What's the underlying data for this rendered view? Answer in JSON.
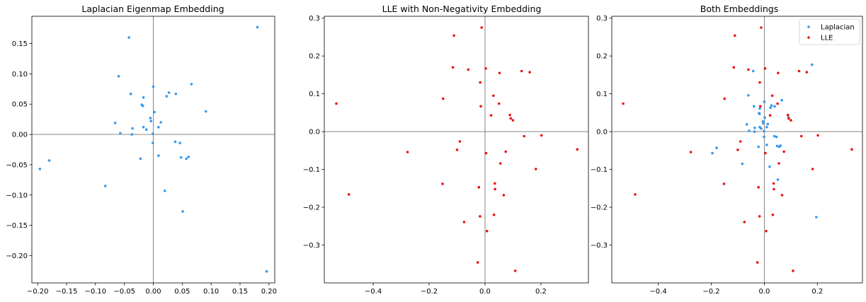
{
  "chart_data": [
    {
      "type": "scatter",
      "title": "Laplacian Eigenmap Embedding",
      "xlim": [
        -0.21,
        0.21
      ],
      "ylim": [
        -0.245,
        0.195
      ],
      "xticks": [
        -0.2,
        -0.15,
        -0.1,
        -0.05,
        0.0,
        0.05,
        0.1,
        0.15,
        0.2
      ],
      "xtick_labels": [
        "−0.20",
        "−0.15",
        "−0.10",
        "−0.05",
        "0.00",
        "0.05",
        "0.10",
        "0.15",
        "0.20"
      ],
      "yticks": [
        0.15,
        0.1,
        0.05,
        0.0,
        -0.05,
        -0.1,
        -0.15,
        -0.2
      ],
      "ytick_labels": [
        "0.15",
        "0.10",
        "0.05",
        "0.00",
        "−0.05",
        "−0.10",
        "−0.15",
        "−0.20"
      ],
      "zero_lines": true,
      "legend": null,
      "series": [
        {
          "color": "#3399ee",
          "points": [
            [
              -0.196,
              -0.057
            ],
            [
              -0.18,
              -0.043
            ],
            [
              -0.083,
              -0.085
            ],
            [
              -0.066,
              0.019
            ],
            [
              -0.06,
              0.096
            ],
            [
              -0.057,
              0.002
            ],
            [
              -0.042,
              0.16
            ],
            [
              -0.039,
              0.067
            ],
            [
              -0.036,
              0.01
            ],
            [
              -0.037,
              0.0
            ],
            [
              -0.022,
              -0.04
            ],
            [
              -0.02,
              0.049
            ],
            [
              -0.018,
              0.047
            ],
            [
              -0.017,
              0.061
            ],
            [
              -0.017,
              0.012
            ],
            [
              -0.012,
              0.008
            ],
            [
              -0.005,
              0.027
            ],
            [
              -0.004,
              0.022
            ],
            [
              0.0,
              0.079
            ],
            [
              -0.001,
              0.001
            ],
            [
              0.002,
              0.037
            ],
            [
              -0.001,
              -0.014
            ],
            [
              0.009,
              0.012
            ],
            [
              0.009,
              -0.035
            ],
            [
              0.013,
              0.02
            ],
            [
              0.02,
              -0.093
            ],
            [
              0.023,
              0.063
            ],
            [
              0.027,
              0.069
            ],
            [
              0.039,
              0.067
            ],
            [
              0.038,
              -0.012
            ],
            [
              0.046,
              -0.014
            ],
            [
              0.048,
              -0.038
            ],
            [
              0.051,
              -0.127
            ],
            [
              0.057,
              -0.04
            ],
            [
              0.061,
              -0.037
            ],
            [
              0.066,
              0.083
            ],
            [
              0.091,
              0.038
            ],
            [
              0.18,
              0.177
            ],
            [
              0.196,
              -0.226
            ]
          ]
        }
      ]
    },
    {
      "type": "scatter",
      "title": "LLE with Non-Negativity Embedding",
      "xlim": [
        -0.575,
        0.37
      ],
      "ylim": [
        -0.4,
        0.305
      ],
      "xticks": [
        -0.4,
        -0.2,
        0.0,
        0.2
      ],
      "xtick_labels": [
        "−0.4",
        "−0.2",
        "0.0",
        "0.2"
      ],
      "yticks": [
        0.3,
        0.2,
        0.1,
        0.0,
        -0.1,
        -0.2,
        -0.3
      ],
      "ytick_labels": [
        "0.3",
        "0.2",
        "0.1",
        "0.0",
        "−0.1",
        "−0.2",
        "−0.3"
      ],
      "zero_lines": true,
      "legend": null,
      "series": [
        {
          "color": "#ee1111",
          "points": [
            [
              -0.532,
              0.074
            ],
            [
              -0.487,
              -0.166
            ],
            [
              -0.277,
              -0.054
            ],
            [
              -0.15,
              0.087
            ],
            [
              -0.152,
              -0.138
            ],
            [
              -0.115,
              0.17
            ],
            [
              -0.111,
              0.254
            ],
            [
              -0.1,
              -0.048
            ],
            [
              -0.09,
              -0.026
            ],
            [
              -0.075,
              -0.239
            ],
            [
              -0.06,
              0.164
            ],
            [
              -0.026,
              -0.346
            ],
            [
              -0.022,
              -0.147
            ],
            [
              -0.018,
              -0.224
            ],
            [
              -0.017,
              0.13
            ],
            [
              -0.015,
              0.067
            ],
            [
              -0.012,
              0.275
            ],
            [
              0.003,
              0.167
            ],
            [
              0.004,
              -0.057
            ],
            [
              0.007,
              -0.263
            ],
            [
              0.022,
              0.043
            ],
            [
              0.03,
              0.095
            ],
            [
              0.032,
              -0.22
            ],
            [
              0.035,
              -0.137
            ],
            [
              0.036,
              -0.152
            ],
            [
              0.05,
              0.074
            ],
            [
              0.052,
              0.155
            ],
            [
              0.055,
              -0.084
            ],
            [
              0.067,
              -0.168
            ],
            [
              0.074,
              -0.053
            ],
            [
              0.089,
              0.044
            ],
            [
              0.092,
              0.035
            ],
            [
              0.1,
              0.03
            ],
            [
              0.108,
              -0.368
            ],
            [
              0.131,
              0.16
            ],
            [
              0.14,
              -0.012
            ],
            [
              0.16,
              0.157
            ],
            [
              0.182,
              -0.099
            ],
            [
              0.202,
              -0.01
            ],
            [
              0.33,
              -0.047
            ]
          ]
        }
      ]
    },
    {
      "type": "scatter",
      "title": "Both Embeddings",
      "xlim": [
        -0.575,
        0.37
      ],
      "ylim": [
        -0.4,
        0.305
      ],
      "xticks": [
        -0.4,
        -0.2,
        0.0,
        0.2
      ],
      "xtick_labels": [
        "−0.4",
        "−0.2",
        "0.0",
        "0.2"
      ],
      "yticks": [
        0.3,
        0.2,
        0.1,
        0.0,
        -0.1,
        -0.2,
        -0.3
      ],
      "ytick_labels": [
        "0.3",
        "0.2",
        "0.1",
        "0.0",
        "−0.1",
        "−0.2",
        "−0.3"
      ],
      "zero_lines": true,
      "legend": "top-right",
      "series": [
        {
          "name": "Laplacian",
          "color": "#3399ee",
          "ref_points_of_chart": 0
        },
        {
          "name": "LLE",
          "color": "#ee1111",
          "ref_points_of_chart": 1
        }
      ]
    }
  ]
}
